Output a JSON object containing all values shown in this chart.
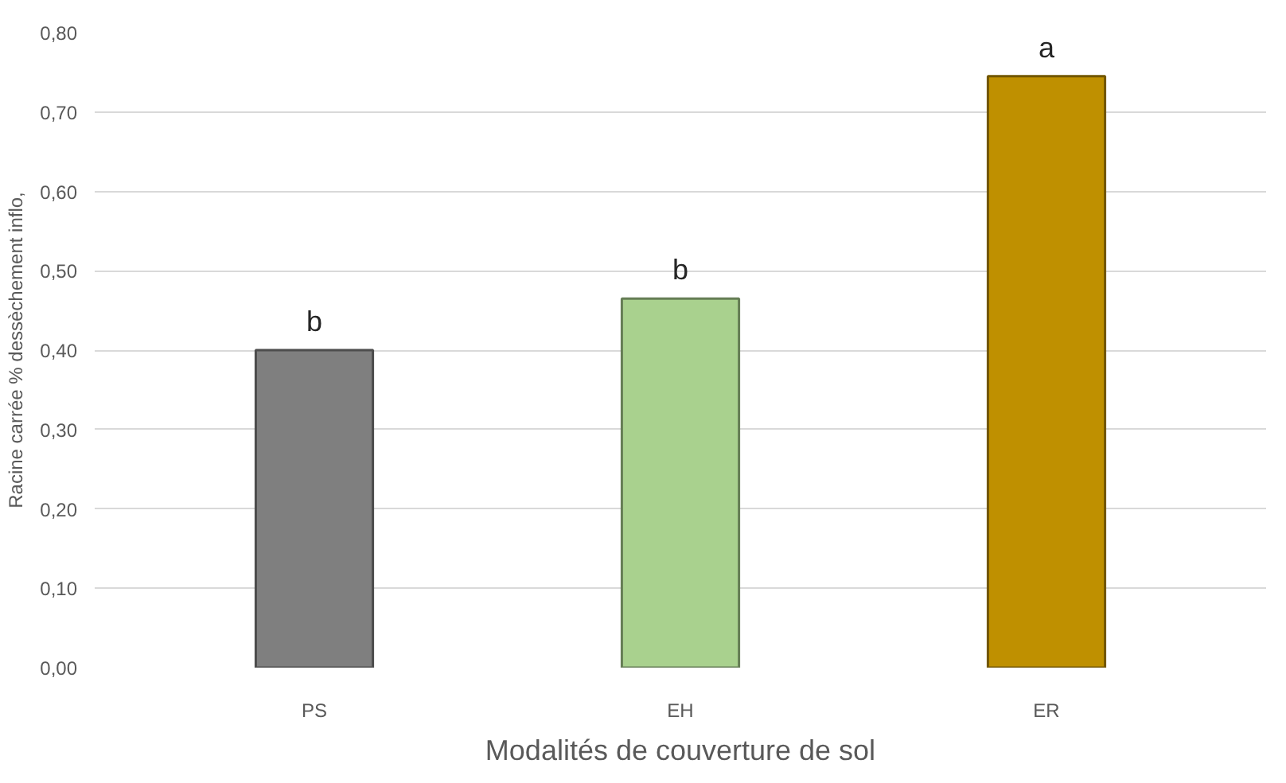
{
  "chart_data": {
    "type": "bar",
    "xlabel": "Modalités de couverture de sol",
    "ylabel": "Racine carrée % dessèchement inflo,",
    "categories": [
      "PS",
      "EH",
      "ER"
    ],
    "values": [
      0.4,
      0.465,
      0.745
    ],
    "colors": [
      "#7f7f7f",
      "#a9d18e",
      "#bf9000"
    ],
    "ylim": [
      0,
      0.8
    ],
    "yticks": [
      {
        "value": 0,
        "label": "0,00"
      },
      {
        "value": 0.1,
        "label": "0,10"
      },
      {
        "value": 0.2,
        "label": "0,20"
      },
      {
        "value": 0.3,
        "label": "0,30"
      },
      {
        "value": 0.4,
        "label": "0,40"
      },
      {
        "value": 0.5,
        "label": "0,50"
      },
      {
        "value": 0.6,
        "label": "0,60"
      },
      {
        "value": 0.7,
        "label": "0,70"
      },
      {
        "value": 0.8,
        "label": "0,80"
      }
    ],
    "grid": "y",
    "annotations": [
      {
        "text": "b",
        "x": "PS",
        "y": 0.4
      },
      {
        "text": "b",
        "x": "EH",
        "y": 0.465
      },
      {
        "text": "a",
        "x": "ER",
        "y": 0.745
      }
    ]
  }
}
